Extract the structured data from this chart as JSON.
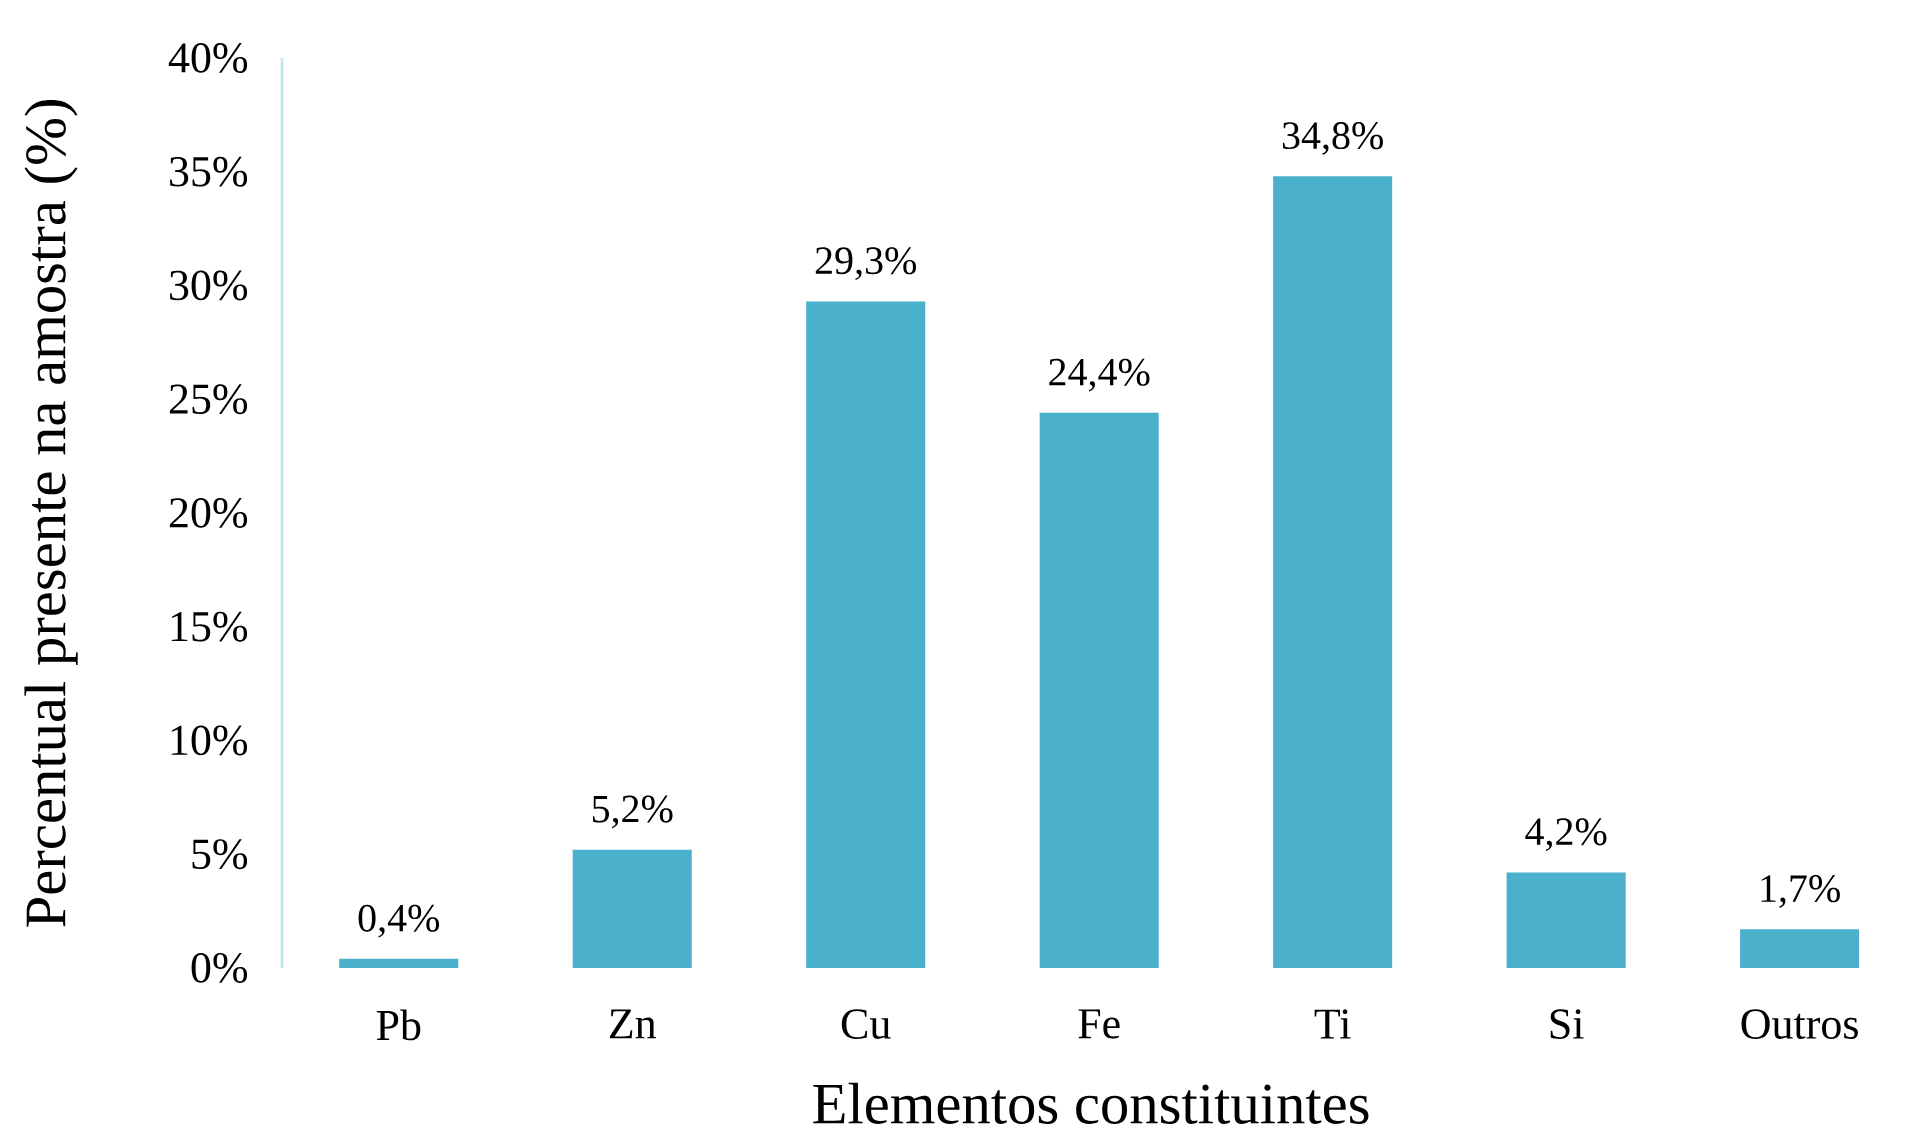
{
  "chart_data": {
    "type": "bar",
    "xlabel": "Elementos constituintes",
    "ylabel": "Percentual presente na amostra (%)",
    "categories": [
      "Pb",
      "Zn",
      "Cu",
      "Fe",
      "Ti",
      "Si",
      "Outros"
    ],
    "values": [
      0.4,
      5.2,
      29.3,
      24.4,
      34.8,
      4.2,
      1.7
    ],
    "value_labels": [
      "0,4%",
      "5,2%",
      "29,3%",
      "24,4%",
      "34,8%",
      "4,2%",
      "1,7%"
    ],
    "color": "#4bb0cc",
    "ylim": [
      0,
      40
    ],
    "yticks": [
      {
        "value": 0,
        "label": "0%"
      },
      {
        "value": 5,
        "label": "5%"
      },
      {
        "value": 10,
        "label": "10%"
      },
      {
        "value": 15,
        "label": "15%"
      },
      {
        "value": 20,
        "label": "20%"
      },
      {
        "value": 25,
        "label": "25%"
      },
      {
        "value": 30,
        "label": "30%"
      },
      {
        "value": 35,
        "label": "35%"
      },
      {
        "value": 40,
        "label": "40%"
      }
    ],
    "grid": false
  }
}
